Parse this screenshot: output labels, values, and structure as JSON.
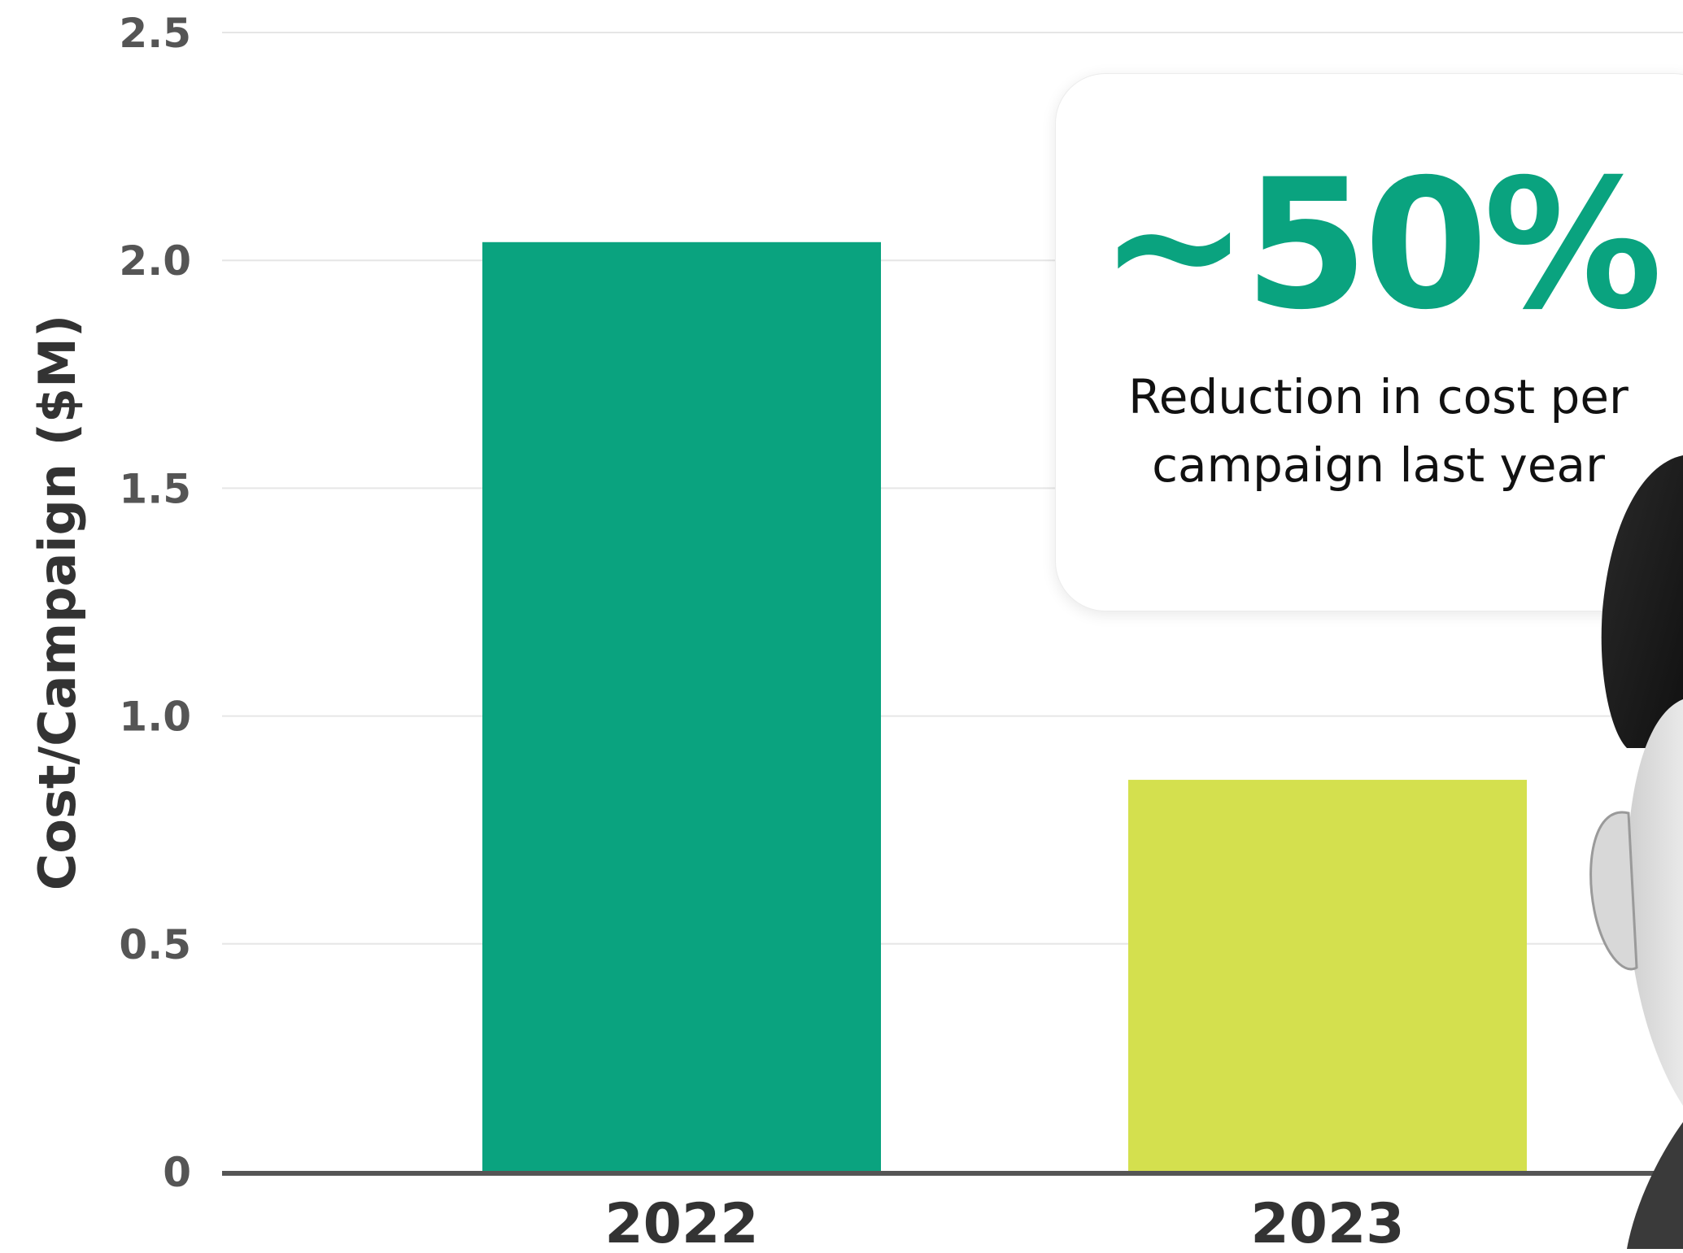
{
  "chart_data": {
    "type": "bar",
    "categories": [
      "2022",
      "2023"
    ],
    "values": [
      2.04,
      0.86
    ],
    "bar_colors": [
      "#0aa37f",
      "#d4e04e"
    ],
    "ylabel": "Cost/Campaign ($M)",
    "xlabel": "",
    "ylim": [
      0,
      2.5
    ],
    "yticks": [
      "0",
      "0.5",
      "1.0",
      "1.5",
      "2.0",
      "2.5"
    ],
    "grid": true
  },
  "callout": {
    "stat": "~50%",
    "caption": "Reduction in cost per campaign last year"
  },
  "colors": {
    "accent": "#0aa37f",
    "secondary": "#d4e04e",
    "axis": "#555555",
    "grid": "#e6e6e6",
    "tick_text": "#555555"
  },
  "photo": {
    "icon": "person-portrait-icon"
  }
}
